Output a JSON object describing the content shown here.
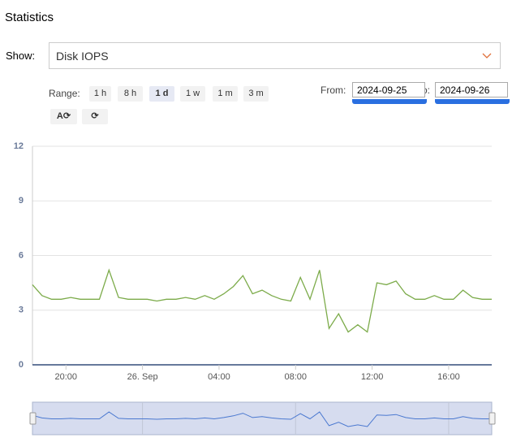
{
  "header": {
    "title": "Statistics"
  },
  "controls": {
    "show_label": "Show:",
    "show_value": "Disk IOPS",
    "range_label": "Range:",
    "range_buttons": [
      "1 h",
      "8 h",
      "1 d",
      "1 w",
      "1 m",
      "3 m"
    ],
    "active_range": 2,
    "auto_refresh_label": "A",
    "from_label": "From:",
    "from_value": "2024-09-25",
    "to_label": "To:",
    "to_value": "2024-09-26"
  },
  "chart_data": {
    "type": "line",
    "x": [
      "2024-09-25T18:15",
      "2024-09-25T18:45",
      "2024-09-25T19:15",
      "2024-09-25T19:45",
      "2024-09-25T20:15",
      "2024-09-25T20:45",
      "2024-09-25T21:15",
      "2024-09-25T21:45",
      "2024-09-25T22:15",
      "2024-09-25T22:45",
      "2024-09-25T23:15",
      "2024-09-25T23:45",
      "2024-09-26T00:15",
      "2024-09-26T00:45",
      "2024-09-26T01:15",
      "2024-09-26T01:45",
      "2024-09-26T02:15",
      "2024-09-26T02:45",
      "2024-09-26T03:15",
      "2024-09-26T03:45",
      "2024-09-26T04:15",
      "2024-09-26T04:45",
      "2024-09-26T05:15",
      "2024-09-26T05:45",
      "2024-09-26T06:15",
      "2024-09-26T06:45",
      "2024-09-26T07:15",
      "2024-09-26T07:45",
      "2024-09-26T08:15",
      "2024-09-26T08:45",
      "2024-09-26T09:15",
      "2024-09-26T09:45",
      "2024-09-26T10:15",
      "2024-09-26T10:45",
      "2024-09-26T11:15",
      "2024-09-26T11:45",
      "2024-09-26T12:15",
      "2024-09-26T12:45",
      "2024-09-26T13:15",
      "2024-09-26T13:45",
      "2024-09-26T14:15",
      "2024-09-26T14:45",
      "2024-09-26T15:15",
      "2024-09-26T15:45",
      "2024-09-26T16:15",
      "2024-09-26T16:45",
      "2024-09-26T17:15",
      "2024-09-26T17:45",
      "2024-09-26T18:15"
    ],
    "series": [
      {
        "color": "#7cab4a",
        "values": [
          4.4,
          3.8,
          3.6,
          3.6,
          3.7,
          3.6,
          3.6,
          3.6,
          5.2,
          3.7,
          3.6,
          3.6,
          3.6,
          3.5,
          3.6,
          3.6,
          3.7,
          3.6,
          3.8,
          3.6,
          3.9,
          4.3,
          4.9,
          3.9,
          4.1,
          3.8,
          3.6,
          3.5,
          4.8,
          3.6,
          5.2,
          2.0,
          2.8,
          1.8,
          2.2,
          1.8,
          4.5,
          4.4,
          4.6,
          3.9,
          3.6,
          3.6,
          3.8,
          3.6,
          3.6,
          4.1,
          3.7,
          3.6,
          3.6
        ]
      }
    ],
    "navigator_color": "#4a78d0",
    "xlim": [
      "2024-09-25T18:15",
      "2024-09-26T18:15"
    ],
    "xticks": [
      {
        "value": "2024-09-25T20:00",
        "label": "20:00"
      },
      {
        "value": "2024-09-26T00:00",
        "label": "26. Sep"
      },
      {
        "value": "2024-09-26T04:00",
        "label": "04:00"
      },
      {
        "value": "2024-09-26T08:00",
        "label": "08:00"
      },
      {
        "value": "2024-09-26T12:00",
        "label": "12:00"
      },
      {
        "value": "2024-09-26T16:00",
        "label": "16:00"
      }
    ],
    "ylim": [
      0,
      12
    ],
    "yticks": [
      0,
      3,
      6,
      9,
      12
    ],
    "grid": true
  }
}
